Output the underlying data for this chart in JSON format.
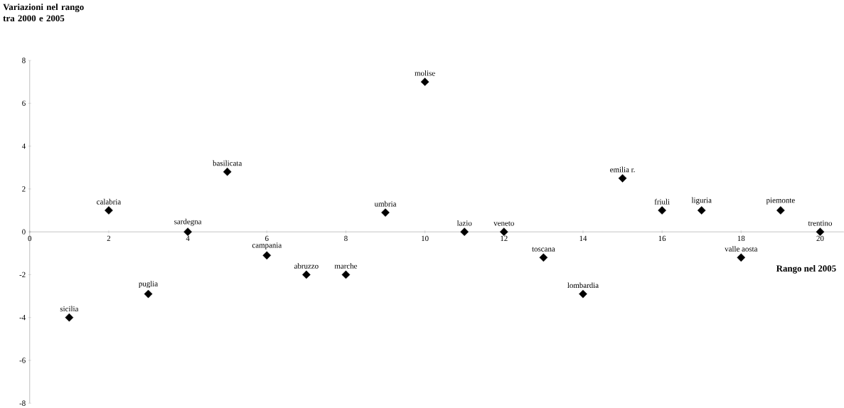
{
  "chart_data": {
    "type": "scatter",
    "xlabel": "Rango nel 2005",
    "ylabel": "Variazioni nel rango tra 2000 e 2005",
    "x": [
      1,
      2,
      3,
      4,
      5,
      6,
      7,
      8,
      9,
      10,
      11,
      12,
      13,
      14,
      15,
      16,
      17,
      18,
      19,
      20
    ],
    "values": [
      -4,
      1,
      -2.9,
      0,
      2.8,
      -1.1,
      -2,
      -2,
      0.9,
      7,
      0,
      0,
      -1.2,
      -2.9,
      2.5,
      1,
      1,
      -1.2,
      1,
      0
    ],
    "color": "#000000",
    "marker": "diamond",
    "xlim": [
      0,
      20.6
    ],
    "xticks": [
      0,
      2,
      4,
      6,
      8,
      10,
      12,
      14,
      16,
      18,
      20
    ],
    "ylim": [
      -8,
      8
    ],
    "yticks": [
      -8,
      -6,
      -4,
      -2,
      0,
      2,
      4,
      6,
      8
    ],
    "annotations": [
      {
        "text": "sicilia",
        "x": 1,
        "y": -4
      },
      {
        "text": "calabria",
        "x": 2,
        "y": 1
      },
      {
        "text": "puglia",
        "x": 3,
        "y": -2.9
      },
      {
        "text": "sardegna",
        "x": 4,
        "y": 0
      },
      {
        "text": "basilicata",
        "x": 5,
        "y": 2.8
      },
      {
        "text": "campania",
        "x": 6,
        "y": -1.1
      },
      {
        "text": "abruzzo",
        "x": 7,
        "y": -2
      },
      {
        "text": "marche",
        "x": 8,
        "y": -2
      },
      {
        "text": "umbria",
        "x": 9,
        "y": 0.9
      },
      {
        "text": "molise",
        "x": 10,
        "y": 7
      },
      {
        "text": "lazio",
        "x": 11,
        "y": 0
      },
      {
        "text": "veneto",
        "x": 12,
        "y": 0
      },
      {
        "text": "toscana",
        "x": 13,
        "y": -1.2
      },
      {
        "text": "lombardia",
        "x": 14,
        "y": -2.9
      },
      {
        "text": "emilia r.",
        "x": 15,
        "y": 2.5
      },
      {
        "text": "friuli",
        "x": 16,
        "y": 1
      },
      {
        "text": "liguria",
        "x": 17,
        "y": 1
      },
      {
        "text": "valle aosta",
        "x": 18,
        "y": -1.2
      },
      {
        "text": "piemonte",
        "x": 19,
        "y": 1
      },
      {
        "text": "trentino",
        "x": 20,
        "y": 0
      }
    ]
  }
}
